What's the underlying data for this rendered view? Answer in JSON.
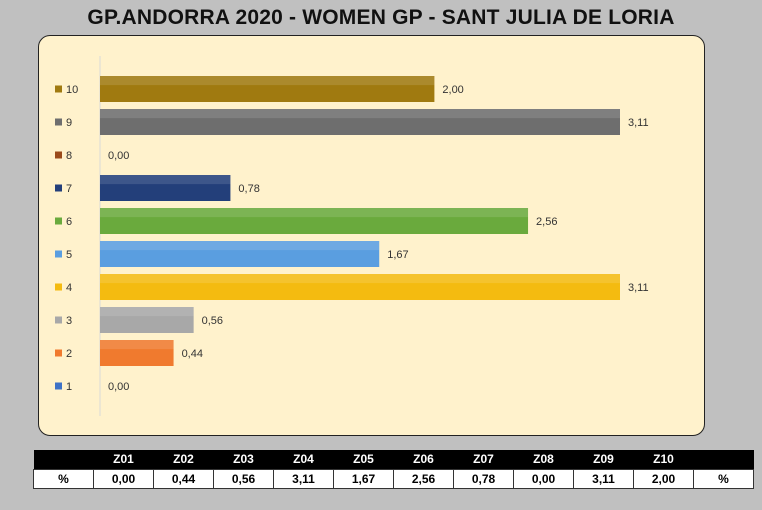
{
  "title": "GP.ANDORRA 2020 - WOMEN GP - SANT JULIA DE LORIA",
  "chart_data": {
    "type": "bar",
    "orientation": "horizontal",
    "categories": [
      "10",
      "9",
      "8",
      "7",
      "6",
      "5",
      "4",
      "3",
      "2",
      "1"
    ],
    "values": [
      2.0,
      3.11,
      0.0,
      0.78,
      2.56,
      1.67,
      3.11,
      0.56,
      0.44,
      0.0
    ],
    "value_labels": [
      "2,00",
      "3,11",
      "0,00",
      "0,78",
      "2,56",
      "1,67",
      "3,11",
      "0,56",
      "0,44",
      "0,00"
    ],
    "colors": [
      "#a07a10",
      "#6e6e6e",
      "#9a4a1a",
      "#233f7a",
      "#6aaa3d",
      "#5a9ee0",
      "#f4bb10",
      "#a8a8a8",
      "#f07a2e",
      "#3e72c6"
    ],
    "xlim": [
      0,
      3.11
    ],
    "grid": false,
    "legend": "none"
  },
  "table": {
    "header_blank_left": "",
    "header_blank_right": "",
    "headers": [
      "Z01",
      "Z02",
      "Z03",
      "Z04",
      "Z05",
      "Z06",
      "Z07",
      "Z08",
      "Z09",
      "Z10"
    ],
    "row_label_left": "%",
    "row_label_right": "%",
    "values": [
      "0,00",
      "0,44",
      "0,56",
      "3,11",
      "1,67",
      "2,56",
      "0,78",
      "0,00",
      "3,11",
      "2,00"
    ]
  }
}
